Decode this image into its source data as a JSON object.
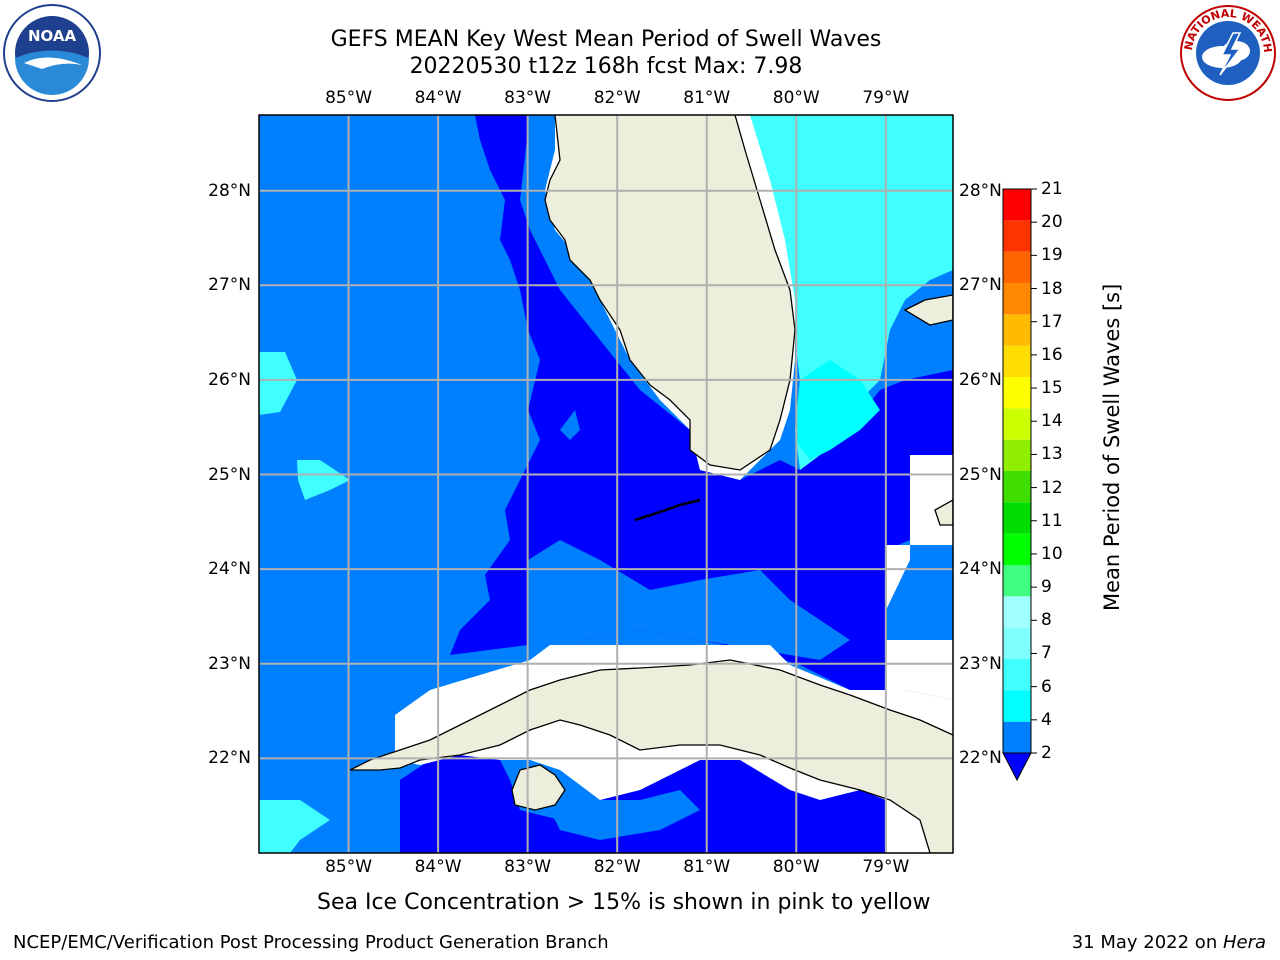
{
  "title": {
    "line1": "GEFS MEAN Key West Mean Period of Swell Waves",
    "line2": "20220530 t12z 168h fcst   Max: 7.98"
  },
  "logos": {
    "left": {
      "name": "noaa-logo",
      "text": "NOAA"
    },
    "right": {
      "name": "nws-logo",
      "ring_text": "NATIONAL WEATHER SERVICE"
    }
  },
  "map": {
    "lon_ticks": [
      "85°W",
      "84°W",
      "83°W",
      "82°W",
      "81°W",
      "80°W",
      "79°W"
    ],
    "lon_values": [
      -85,
      -84,
      -83,
      -82,
      -81,
      -80,
      -79
    ],
    "lat_ticks": [
      "22°N",
      "23°N",
      "24°N",
      "25°N",
      "26°N",
      "27°N",
      "28°N"
    ],
    "lat_values": [
      22,
      23,
      24,
      25,
      26,
      27,
      28
    ],
    "extent": {
      "lon_min": -86,
      "lon_max": -78.25,
      "lat_min": 21,
      "lat_max": 28.8
    },
    "colors": {
      "land": "#eeeedc",
      "ocean_2_4": "#0080ff",
      "ocean_lt2": "#0000ff",
      "ocean_4_6": "#40ffff",
      "ocean_6_8": "#00ffff",
      "missing": "#ffffff",
      "grid": "#b0b0b0"
    }
  },
  "colorbar": {
    "label": "Mean Period of Swell Waves [s]",
    "ticks": [
      "2",
      "4",
      "6",
      "7",
      "8",
      "9",
      "10",
      "11",
      "12",
      "13",
      "14",
      "15",
      "16",
      "17",
      "18",
      "19",
      "20",
      "21"
    ],
    "colors": [
      "#0080ff",
      "#00ffff",
      "#40ffff",
      "#80ffff",
      "#a0ffff",
      "#40ff80",
      "#00ff00",
      "#00dd00",
      "#40dd00",
      "#90ee00",
      "#ccff00",
      "#ffff00",
      "#ffdd00",
      "#ffbb00",
      "#ff8800",
      "#ff6600",
      "#ff3300",
      "#ff0000"
    ],
    "under_color": "#0000ff"
  },
  "caption": "Sea Ice Concentration > 15% is shown in pink to yellow",
  "footer": {
    "left": "NCEP/EMC/Verification Post Processing Product Generation Branch",
    "date": "31 May 2022 on ",
    "machine": "Hera"
  }
}
